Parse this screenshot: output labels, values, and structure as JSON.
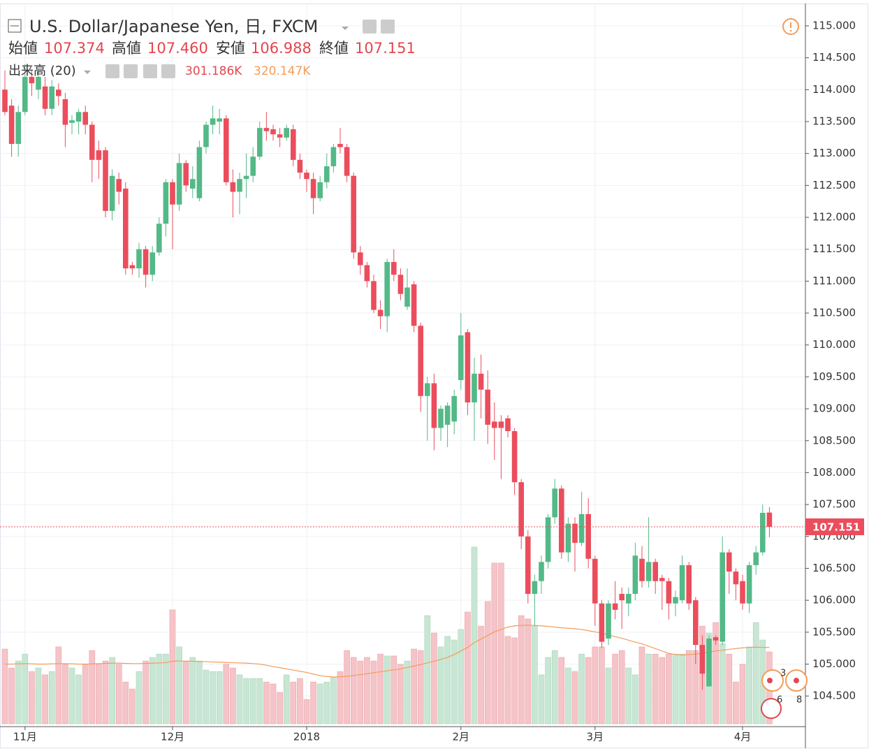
{
  "header": {
    "symbol": "U.S. Dollar/Japanese Yen, 日, FXCM",
    "open_label": "始値",
    "open": "107.374",
    "high_label": "高値",
    "high": "107.460",
    "low_label": "安値",
    "low": "106.988",
    "close_label": "終値",
    "close": "107.151",
    "indicator": "出来高 (20)",
    "volume": "301.186K",
    "volume_ma": "320.147K"
  },
  "events": [
    "3",
    "6",
    "8"
  ],
  "chart_data": {
    "type": "candlestick",
    "up_color": "#53b987",
    "down_color": "#eb4d5c",
    "volume_up_color": "#c8e6d4",
    "volume_down_color": "#f5c4c8",
    "volume_ma_color": "#f39c5a",
    "grid": true,
    "ylim": [
      104.02,
      115.35
    ],
    "yticks": [
      {
        "value": 104.5,
        "label": "104.500"
      },
      {
        "value": 105,
        "label": "105.000"
      },
      {
        "value": 105.5,
        "label": "105.500"
      },
      {
        "value": 106,
        "label": "106.000"
      },
      {
        "value": 106.5,
        "label": "106.500"
      },
      {
        "value": 107,
        "label": "107.000"
      },
      {
        "value": 107.5,
        "label": "107.500"
      },
      {
        "value": 108,
        "label": "108.000"
      },
      {
        "value": 108.5,
        "label": "108.500"
      },
      {
        "value": 109,
        "label": "109.000"
      },
      {
        "value": 109.5,
        "label": "109.500"
      },
      {
        "value": 110,
        "label": "110.000"
      },
      {
        "value": 110.5,
        "label": "110.500"
      },
      {
        "value": 111,
        "label": "111.000"
      },
      {
        "value": 111.5,
        "label": "111.500"
      },
      {
        "value": 112,
        "label": "112.000"
      },
      {
        "value": 112.5,
        "label": "112.500"
      },
      {
        "value": 113,
        "label": "113.000"
      },
      {
        "value": 113.5,
        "label": "113.500"
      },
      {
        "value": 114,
        "label": "114.000"
      },
      {
        "value": 114.5,
        "label": "114.500"
      },
      {
        "value": 115,
        "label": "115.000"
      }
    ],
    "categories": [
      null,
      null,
      null,
      "11月",
      null,
      null,
      null,
      null,
      null,
      null,
      null,
      null,
      null,
      null,
      null,
      null,
      null,
      null,
      null,
      null,
      null,
      null,
      null,
      null,
      null,
      "12月",
      null,
      null,
      null,
      null,
      null,
      null,
      null,
      null,
      null,
      null,
      null,
      null,
      null,
      null,
      null,
      null,
      null,
      null,
      null,
      "2018",
      null,
      null,
      null,
      null,
      null,
      null,
      null,
      null,
      null,
      null,
      null,
      null,
      null,
      null,
      null,
      null,
      null,
      null,
      null,
      null,
      null,
      null,
      "2月",
      null,
      null,
      null,
      null,
      null,
      null,
      null,
      null,
      null,
      null,
      null,
      null,
      null,
      null,
      null,
      null,
      null,
      null,
      null,
      "3月",
      null,
      null,
      null,
      null,
      null,
      null,
      null,
      null,
      null,
      null,
      null,
      null,
      null,
      null,
      null,
      null,
      null,
      null,
      null,
      null,
      null,
      "4月",
      null,
      null,
      null,
      null
    ],
    "open": [
      114.0,
      113.75,
      113.15,
      113.65,
      114.2,
      114.0,
      114.05,
      113.7,
      114.0,
      113.85,
      113.48,
      113.5,
      113.65,
      113.45,
      113.05,
      113.05,
      112.1,
      112.6,
      112.45,
      111.25,
      111.2,
      111.5,
      111.1,
      111.45,
      111.9,
      112.55,
      112.2,
      112.85,
      112.45,
      112.3,
      113.1,
      113.45,
      113.5,
      113.55,
      112.55,
      112.4,
      112.6,
      112.65,
      112.95,
      113.4,
      113.38,
      113.3,
      113.25,
      113.38,
      112.9,
      112.7,
      112.6,
      112.3,
      112.55,
      112.8,
      113.15,
      113.1,
      112.65,
      111.45,
      111.25,
      111.0,
      110.55,
      110.45,
      111.3,
      111.1,
      110.6,
      110.95,
      110.3,
      109.2,
      109.4,
      108.7,
      108.75,
      108.8,
      109.45,
      110.2,
      109.1,
      109.55,
      109.3,
      108.8,
      108.8,
      108.85,
      108.65,
      107.85,
      107.0,
      106.1,
      106.3,
      106.6,
      107.3,
      107.75,
      106.75,
      107.2,
      106.9,
      107.35,
      106.65,
      105.95,
      105.4,
      105.95,
      106.1,
      105.95,
      106.1,
      106.65,
      106.3,
      106.6,
      106.35,
      106.3,
      105.95,
      106.0,
      106.55,
      106.0,
      105.3,
      104.65,
      105.42,
      105.35,
      106.75,
      106.45,
      106.3,
      105.95,
      106.55,
      106.75,
      107.374
    ],
    "high": [
      114.3,
      113.85,
      113.75,
      114.4,
      114.3,
      114.3,
      114.2,
      114.15,
      114.1,
      113.95,
      113.6,
      113.7,
      113.75,
      113.5,
      113.2,
      113.1,
      112.75,
      112.7,
      112.55,
      111.3,
      111.6,
      111.55,
      111.55,
      112.0,
      112.6,
      112.6,
      113.0,
      112.9,
      112.8,
      113.2,
      113.5,
      113.75,
      113.7,
      113.6,
      112.75,
      112.7,
      113.0,
      113.1,
      113.5,
      113.65,
      113.45,
      113.4,
      113.45,
      113.45,
      113.0,
      112.75,
      112.7,
      112.65,
      113.0,
      113.15,
      113.4,
      113.15,
      112.7,
      111.55,
      111.3,
      111.1,
      110.7,
      111.35,
      111.5,
      111.2,
      111.2,
      111.0,
      110.35,
      109.5,
      109.55,
      109.05,
      109.1,
      109.3,
      110.5,
      110.25,
      109.8,
      109.85,
      109.6,
      109.1,
      108.9,
      108.9,
      108.7,
      107.9,
      107.1,
      106.4,
      106.7,
      107.35,
      107.9,
      107.8,
      107.3,
      107.3,
      107.7,
      107.6,
      106.7,
      106.0,
      106.0,
      106.3,
      106.2,
      106.2,
      106.9,
      106.85,
      107.3,
      106.65,
      106.4,
      106.35,
      106.15,
      106.7,
      106.6,
      106.05,
      105.45,
      105.45,
      105.45,
      107.0,
      106.8,
      106.5,
      106.4,
      106.6,
      106.85,
      107.5,
      107.46
    ],
    "low": [
      113.6,
      112.95,
      112.95,
      113.6,
      113.9,
      113.85,
      113.6,
      113.6,
      113.75,
      113.1,
      113.3,
      113.3,
      113.3,
      112.55,
      112.6,
      112.0,
      111.95,
      112.2,
      111.1,
      111.1,
      111.05,
      110.9,
      111.0,
      111.4,
      111.7,
      111.5,
      112.1,
      112.4,
      112.3,
      112.25,
      113.0,
      113.3,
      113.3,
      112.5,
      112.0,
      112.05,
      112.3,
      112.55,
      112.9,
      113.2,
      113.2,
      113.1,
      113.2,
      112.8,
      112.6,
      112.4,
      112.05,
      112.25,
      112.45,
      112.7,
      113.0,
      112.55,
      111.35,
      111.1,
      110.9,
      110.5,
      110.25,
      110.2,
      111.0,
      110.7,
      110.55,
      110.2,
      108.95,
      108.5,
      108.35,
      108.5,
      108.4,
      108.6,
      109.3,
      108.9,
      108.5,
      108.85,
      108.45,
      108.2,
      107.9,
      108.55,
      107.65,
      106.8,
      105.95,
      105.6,
      106.1,
      106.5,
      107.2,
      106.65,
      106.6,
      106.45,
      106.85,
      106.5,
      105.6,
      105.25,
      105.3,
      105.7,
      105.55,
      105.75,
      106.0,
      106.2,
      106.2,
      106.1,
      105.85,
      105.7,
      105.75,
      105.95,
      105.85,
      105.0,
      104.6,
      104.65,
      105.3,
      105.3,
      106.1,
      106.0,
      105.85,
      105.8,
      106.4,
      106.7,
      106.988
    ],
    "close": [
      113.65,
      113.15,
      113.65,
      114.2,
      114.1,
      114.2,
      113.7,
      114.05,
      113.9,
      113.45,
      113.52,
      113.65,
      113.45,
      112.9,
      112.9,
      112.1,
      112.65,
      112.4,
      111.2,
      111.2,
      111.5,
      111.1,
      111.45,
      111.9,
      112.55,
      112.2,
      112.85,
      112.5,
      112.6,
      113.1,
      113.45,
      113.55,
      113.55,
      112.55,
      112.4,
      112.6,
      112.65,
      112.95,
      113.4,
      113.35,
      113.3,
      113.25,
      113.4,
      112.9,
      112.7,
      112.6,
      112.3,
      112.55,
      112.8,
      113.1,
      113.1,
      112.65,
      111.45,
      111.25,
      111.0,
      110.55,
      110.45,
      111.3,
      111.1,
      110.8,
      110.9,
      110.3,
      109.2,
      109.4,
      108.7,
      109.0,
      109.05,
      109.2,
      110.15,
      109.1,
      109.55,
      109.3,
      108.75,
      108.7,
      108.7,
      108.65,
      107.85,
      107.0,
      106.1,
      106.3,
      106.6,
      107.3,
      107.75,
      106.75,
      107.2,
      106.9,
      107.35,
      106.65,
      105.95,
      105.35,
      105.95,
      105.85,
      106.0,
      106.1,
      106.7,
      106.3,
      106.6,
      106.3,
      106.3,
      105.95,
      106.05,
      106.55,
      105.95,
      105.3,
      104.85,
      105.4,
      105.37,
      106.75,
      106.45,
      106.25,
      105.95,
      106.55,
      106.75,
      107.37,
      107.151
    ],
    "volume_lim": [
      0,
      1000
    ],
    "volume": [
      313,
      234,
      263,
      292,
      219,
      234,
      205,
      219,
      322,
      249,
      234,
      205,
      249,
      307,
      249,
      263,
      278,
      249,
      175,
      146,
      219,
      263,
      278,
      292,
      292,
      477,
      322,
      263,
      278,
      263,
      225,
      219,
      219,
      249,
      234,
      205,
      190,
      190,
      190,
      175,
      167,
      132,
      205,
      175,
      190,
      102,
      175,
      167,
      175,
      196,
      219,
      307,
      278,
      263,
      278,
      263,
      292,
      284,
      284,
      249,
      263,
      313,
      307,
      453,
      380,
      322,
      366,
      351,
      395,
      468,
      740,
      409,
      512,
      673,
      673,
      366,
      360,
      453,
      439,
      409,
      205,
      278,
      307,
      278,
      234,
      219,
      292,
      278,
      322,
      322,
      234,
      292,
      307,
      234,
      205,
      322,
      292,
      292,
      278,
      292,
      292,
      292,
      307,
      307,
      409,
      380,
      424,
      336,
      292,
      175,
      249,
      322,
      424,
      351,
      301.186
    ],
    "volume_ma": [
      250,
      250,
      251,
      252,
      251,
      250,
      250,
      251,
      252,
      252,
      251,
      250,
      250,
      251,
      252,
      253,
      254,
      254,
      253,
      252,
      252,
      253,
      254,
      255,
      256,
      262,
      263,
      262,
      262,
      261,
      260,
      259,
      258,
      257,
      256,
      255,
      254,
      252,
      250,
      245,
      240,
      235,
      230,
      225,
      220,
      215,
      208,
      202,
      198,
      196,
      197,
      199,
      202,
      206,
      210,
      214,
      218,
      222,
      226,
      230,
      236,
      242,
      248,
      255,
      262,
      270,
      278,
      290,
      305,
      320,
      340,
      355,
      370,
      385,
      395,
      405,
      410,
      412,
      413,
      412,
      410,
      408,
      405,
      402,
      400,
      398,
      395,
      390,
      385,
      380,
      372,
      365,
      358,
      350,
      342,
      335,
      325,
      315,
      305,
      295,
      290,
      288,
      290,
      292,
      295,
      300,
      305,
      308,
      312,
      315,
      318,
      320,
      321,
      320,
      320.147
    ]
  }
}
